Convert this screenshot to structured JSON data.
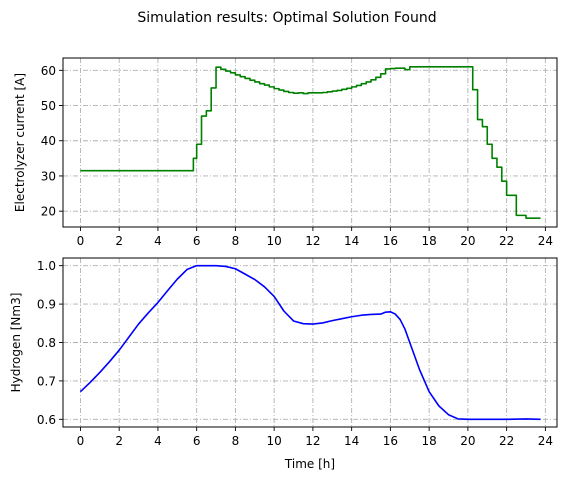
{
  "figure": {
    "suptitle": "Simulation results:  Optimal Solution Found"
  },
  "chart_data": [
    {
      "type": "line",
      "drawstyle": "steps-post",
      "title": "",
      "xlabel": "",
      "ylabel": "Electrolyzer current [A]",
      "xlim": [
        -0.9,
        24.6
      ],
      "ylim": [
        15.5,
        63.5
      ],
      "xticks": [
        0,
        2,
        4,
        6,
        8,
        10,
        12,
        14,
        16,
        18,
        20,
        22,
        24
      ],
      "yticks": [
        20,
        30,
        40,
        50,
        60
      ],
      "grid": true,
      "color": "#008000",
      "series": [
        {
          "x": [
            0,
            5.83,
            6.0,
            6.25,
            6.5,
            6.75,
            7.0,
            7.25,
            7.5,
            7.75,
            8.0,
            8.25,
            8.5,
            8.75,
            9.0,
            9.25,
            9.5,
            9.75,
            10.0,
            10.25,
            10.5,
            10.75,
            11.0,
            11.25,
            11.5,
            11.75,
            12.0,
            12.25,
            12.5,
            12.75,
            13.0,
            13.25,
            13.5,
            13.75,
            14.0,
            14.25,
            14.5,
            14.75,
            15.0,
            15.25,
            15.5,
            15.75,
            16.0,
            16.25,
            16.5,
            16.75,
            17.0,
            17.25,
            20.25,
            20.5,
            20.75,
            21.0,
            21.25,
            21.5,
            21.75,
            22.0,
            22.25,
            22.5,
            23.0,
            23.25,
            23.75
          ],
          "y": [
            31.5,
            35.0,
            39.0,
            47.0,
            48.5,
            55.0,
            60.9,
            60.3,
            59.8,
            59.3,
            58.7,
            58.2,
            57.7,
            57.2,
            56.7,
            56.2,
            55.8,
            55.3,
            54.8,
            54.4,
            54.0,
            53.7,
            53.5,
            53.6,
            53.4,
            53.6,
            53.6,
            53.6,
            53.7,
            53.9,
            54.1,
            54.3,
            54.6,
            54.9,
            55.3,
            55.7,
            56.2,
            56.7,
            57.3,
            58.0,
            59.0,
            60.4,
            60.5,
            60.6,
            60.6,
            60.2,
            61.0,
            61.0,
            54.5,
            46.0,
            44.0,
            39.0,
            35.0,
            32.5,
            28.5,
            24.5,
            24.5,
            18.8,
            18.0,
            18.0,
            18.0
          ]
        }
      ]
    },
    {
      "type": "line",
      "title": "",
      "xlabel": "Time [h]",
      "ylabel": "Hydrogen [Nm3]",
      "xlim": [
        -0.9,
        24.6
      ],
      "ylim": [
        0.58,
        1.02
      ],
      "xticks": [
        0,
        2,
        4,
        6,
        8,
        10,
        12,
        14,
        16,
        18,
        20,
        22,
        24
      ],
      "yticks": [
        0.6,
        0.7,
        0.8,
        0.9,
        1.0
      ],
      "grid": true,
      "color": "#0000ff",
      "series": [
        {
          "x": [
            0,
            0.5,
            1.0,
            1.5,
            2.0,
            2.5,
            3.0,
            3.5,
            4.0,
            4.5,
            5.0,
            5.5,
            6.0,
            6.5,
            7.0,
            7.5,
            8.0,
            8.5,
            9.0,
            9.5,
            10.0,
            10.5,
            11.0,
            11.5,
            12.0,
            12.5,
            13.0,
            13.5,
            14.0,
            14.5,
            15.0,
            15.5,
            15.75,
            16.0,
            16.25,
            16.5,
            16.75,
            17.0,
            17.5,
            18.0,
            18.5,
            19.0,
            19.5,
            20.0,
            21.0,
            22.0,
            23.0,
            23.75
          ],
          "y": [
            0.672,
            0.696,
            0.722,
            0.75,
            0.78,
            0.814,
            0.848,
            0.877,
            0.904,
            0.935,
            0.965,
            0.99,
            1.0,
            1.0,
            1.0,
            0.998,
            0.992,
            0.978,
            0.964,
            0.945,
            0.92,
            0.882,
            0.856,
            0.849,
            0.848,
            0.851,
            0.857,
            0.862,
            0.867,
            0.871,
            0.873,
            0.874,
            0.879,
            0.88,
            0.874,
            0.86,
            0.835,
            0.8,
            0.73,
            0.672,
            0.635,
            0.612,
            0.601,
            0.6,
            0.6,
            0.6,
            0.601,
            0.6
          ]
        }
      ]
    }
  ]
}
